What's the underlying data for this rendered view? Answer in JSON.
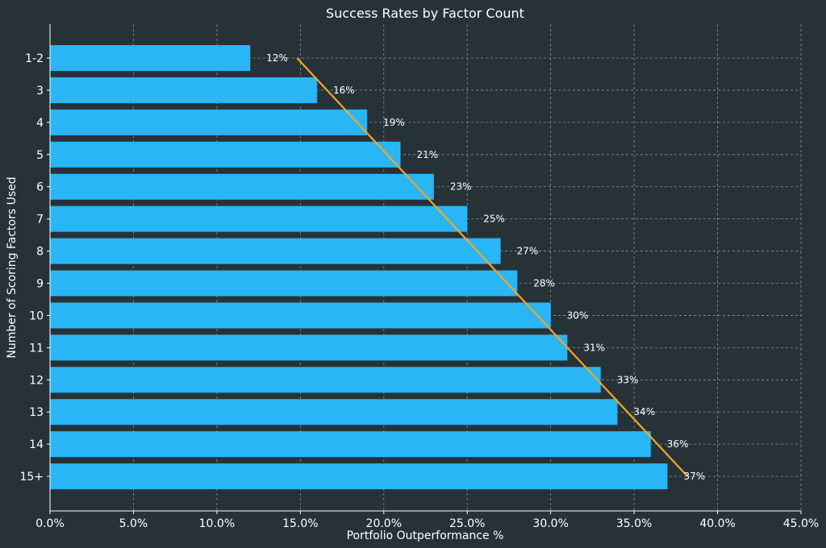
{
  "chart_data": {
    "type": "bar",
    "orientation": "horizontal",
    "title": "Success Rates by Factor Count",
    "xlabel": "Portfolio Outperformance %",
    "ylabel": "Number of Scoring Factors Used",
    "categories": [
      "1-2",
      "3",
      "4",
      "5",
      "6",
      "7",
      "8",
      "9",
      "10",
      "11",
      "12",
      "13",
      "14",
      "15+"
    ],
    "values": [
      12,
      16,
      19,
      21,
      23,
      25,
      27,
      28,
      30,
      31,
      33,
      34,
      36,
      37
    ],
    "data_labels": [
      "12%",
      "16%",
      "19%",
      "21%",
      "23%",
      "25%",
      "27%",
      "28%",
      "30%",
      "31%",
      "33%",
      "34%",
      "36%",
      "37%"
    ],
    "xlim": [
      0,
      45
    ],
    "x_ticks": [
      0,
      5,
      10,
      15,
      20,
      25,
      30,
      35,
      40,
      45
    ],
    "x_tick_labels": [
      "0.0%",
      "5.0%",
      "10.0%",
      "15.0%",
      "20.0%",
      "25.0%",
      "30.0%",
      "35.0%",
      "40.0%",
      "45.0%"
    ],
    "trend_line": {
      "x_start": 14.8,
      "x_end": 38.2,
      "from_category": "1-2",
      "to_category": "15+"
    },
    "grid": true,
    "colors": {
      "background": "#263238",
      "bar": "#29b6f6",
      "trend": "#f5a623",
      "text": "#ffffff",
      "grid": "#8a9499"
    }
  }
}
